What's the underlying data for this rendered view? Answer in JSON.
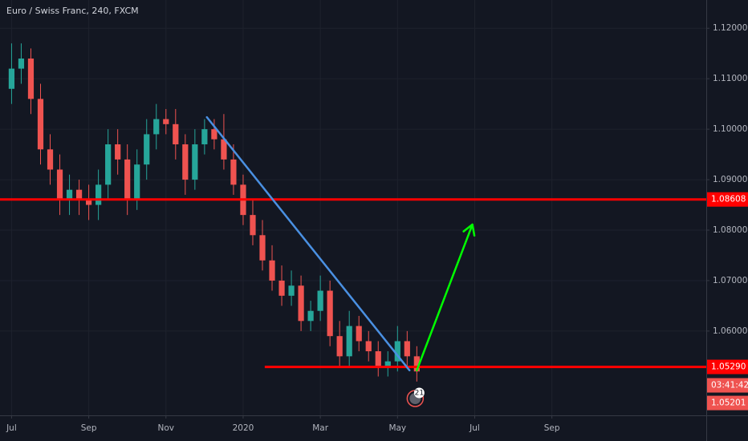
{
  "chart_data": {
    "type": "candlestick",
    "title": "Euro / Swiss Franc, 240, FXCM",
    "x": [
      0,
      0.25,
      0.5,
      0.75,
      1,
      1.25,
      1.5,
      1.75,
      2,
      2.25,
      2.5,
      2.75,
      3,
      3.25,
      3.5,
      3.75,
      4,
      4.25,
      4.5,
      4.75,
      5,
      5.25,
      5.5,
      5.75,
      6,
      6.25,
      6.5,
      6.75,
      7,
      7.25,
      7.5,
      7.75,
      8,
      8.25,
      8.5,
      8.75,
      9,
      9.25,
      9.5,
      9.75,
      10,
      10.25,
      10.5
    ],
    "open": [
      1.108,
      1.112,
      1.114,
      1.106,
      1.096,
      1.092,
      1.086,
      1.088,
      1.086,
      1.085,
      1.089,
      1.097,
      1.094,
      1.086,
      1.093,
      1.099,
      1.102,
      1.101,
      1.097,
      1.09,
      1.097,
      1.1,
      1.098,
      1.094,
      1.089,
      1.083,
      1.079,
      1.074,
      1.07,
      1.067,
      1.069,
      1.062,
      1.064,
      1.068,
      1.059,
      1.055,
      1.061,
      1.058,
      1.056,
      1.053,
      1.054,
      1.058,
      1.055
    ],
    "high": [
      1.117,
      1.117,
      1.116,
      1.109,
      1.099,
      1.095,
      1.091,
      1.09,
      1.089,
      1.092,
      1.1,
      1.1,
      1.097,
      1.096,
      1.102,
      1.105,
      1.104,
      1.104,
      1.099,
      1.1,
      1.102,
      1.102,
      1.103,
      1.097,
      1.091,
      1.086,
      1.082,
      1.077,
      1.073,
      1.072,
      1.071,
      1.066,
      1.071,
      1.07,
      1.062,
      1.064,
      1.063,
      1.06,
      1.058,
      1.056,
      1.061,
      1.06,
      1.057
    ],
    "low": [
      1.105,
      1.109,
      1.103,
      1.093,
      1.089,
      1.083,
      1.083,
      1.083,
      1.082,
      1.082,
      1.086,
      1.091,
      1.083,
      1.084,
      1.09,
      1.096,
      1.099,
      1.094,
      1.087,
      1.088,
      1.095,
      1.096,
      1.092,
      1.087,
      1.081,
      1.077,
      1.072,
      1.068,
      1.065,
      1.065,
      1.06,
      1.06,
      1.062,
      1.057,
      1.053,
      1.053,
      1.056,
      1.054,
      1.051,
      1.051,
      1.052,
      1.053,
      1.05
    ],
    "close": [
      1.112,
      1.114,
      1.106,
      1.096,
      1.092,
      1.086,
      1.088,
      1.086,
      1.085,
      1.089,
      1.097,
      1.094,
      1.086,
      1.093,
      1.099,
      1.102,
      1.101,
      1.097,
      1.09,
      1.097,
      1.1,
      1.098,
      1.094,
      1.089,
      1.083,
      1.079,
      1.074,
      1.07,
      1.067,
      1.069,
      1.062,
      1.064,
      1.068,
      1.059,
      1.055,
      1.061,
      1.058,
      1.056,
      1.053,
      1.054,
      1.058,
      1.055,
      1.052
    ],
    "up_color": "#26a69a",
    "down_color": "#ef5350",
    "xlim": [
      -0.3,
      18
    ],
    "ylim": [
      1.0433,
      1.1256
    ],
    "xticks": [
      {
        "value": 0,
        "label": "Jul"
      },
      {
        "value": 2,
        "label": "Sep"
      },
      {
        "value": 4,
        "label": "Nov"
      },
      {
        "value": 6,
        "label": "2020"
      },
      {
        "value": 8,
        "label": "Mar"
      },
      {
        "value": 10,
        "label": "May"
      },
      {
        "value": 12,
        "label": "Jul"
      },
      {
        "value": 14,
        "label": "Sep"
      }
    ],
    "yticks": [
      {
        "value": 1.12,
        "label": "1.12000"
      },
      {
        "value": 1.11,
        "label": "1.11000"
      },
      {
        "value": 1.1,
        "label": "1.10000"
      },
      {
        "value": 1.09,
        "label": "1.09000"
      },
      {
        "value": 1.08,
        "label": "1.08000"
      },
      {
        "value": 1.07,
        "label": "1.07000"
      },
      {
        "value": 1.06,
        "label": "1.06000"
      }
    ],
    "grid": true,
    "levels": [
      {
        "value": 1.08608,
        "x_start": -0.3,
        "color": "#ff0000"
      },
      {
        "value": 1.0529,
        "label": "1.05290",
        "x_start": 6.56,
        "color": "#ff0000"
      }
    ],
    "current_price": {
      "value": 1.05201,
      "label": "1.05201",
      "countdown": "03:41:42",
      "color": "#ef5350"
    },
    "trendline": {
      "points": [
        [
          5.06,
          1.10238
        ],
        [
          10.31,
          1.05222
        ]
      ],
      "color": "#4a90e2"
    },
    "projection": {
      "points": [
        [
          10.5,
          1.05222
        ],
        [
          11.94,
          1.08111
        ]
      ],
      "color": "#00ff00"
    },
    "events_badge": "21"
  }
}
